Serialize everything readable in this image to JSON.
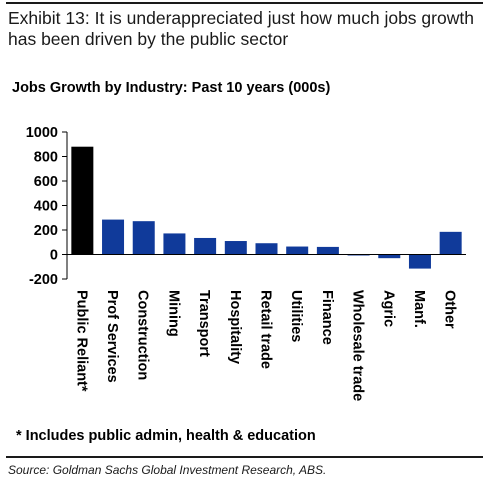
{
  "exhibit_title": "Exhibit 13: It is underappreciated just how much jobs growth has been driven by the public sector",
  "footnote": "* Includes public admin, health & education",
  "source": "Source: Goldman Sachs Global Investment Research, ABS.",
  "chart_data": {
    "type": "bar",
    "title": "Jobs Growth by Industry: Past 10 years (000s)",
    "xlabel": "",
    "ylabel": "",
    "ylim": [
      -200,
      1000
    ],
    "yticks": [
      1000,
      800,
      600,
      400,
      200,
      0,
      -200
    ],
    "ytick_labels": [
      "1000",
      "800",
      "600",
      "400",
      "200",
      "0",
      "-200"
    ],
    "grid": false,
    "categories": [
      "Public Reliant*",
      "Prof Services",
      "Construction",
      "Mining",
      "Transport",
      "Hospitality",
      "Retail trade",
      "Utilities",
      "Finance",
      "Wholesale trade",
      "Agric",
      "Manf.",
      "Other"
    ],
    "values": [
      880,
      285,
      272,
      172,
      135,
      110,
      92,
      65,
      62,
      -5,
      -30,
      -115,
      185
    ],
    "colors": [
      "#000000",
      "#103a9a",
      "#103a9a",
      "#103a9a",
      "#103a9a",
      "#103a9a",
      "#103a9a",
      "#103a9a",
      "#103a9a",
      "#103a9a",
      "#103a9a",
      "#103a9a",
      "#103a9a"
    ]
  }
}
